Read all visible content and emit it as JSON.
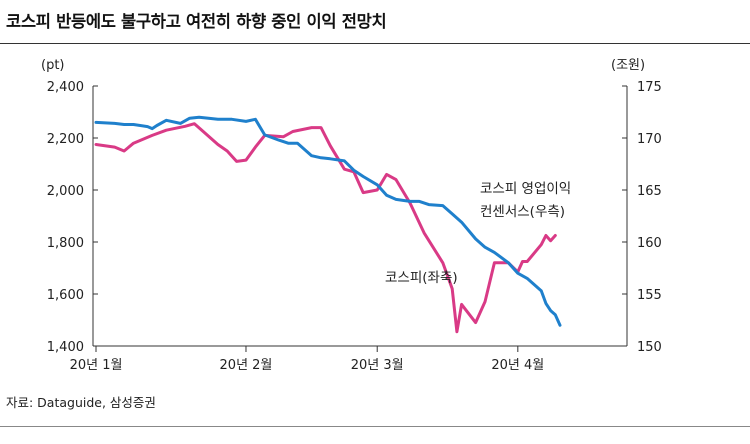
{
  "title": "코스피 반등에도 불구하고 여전히 하향 중인 이익 전망치",
  "source": "자료: Dataguide, 삼성증권",
  "colors": {
    "kospi": "#d93a86",
    "consensus": "#1f80cc",
    "axis": "#333333"
  },
  "chart_data": {
    "type": "line",
    "left_axis": {
      "unit_label": "(pt)",
      "ylim": [
        1400,
        2400
      ],
      "ticks": [
        "2,400",
        "2,200",
        "2,000",
        "1,800",
        "1,600",
        "1,400"
      ],
      "tick_values": [
        2400,
        2200,
        2000,
        1800,
        1600,
        1400
      ]
    },
    "right_axis": {
      "unit_label": "(조원)",
      "ylim": [
        150,
        175
      ],
      "ticks": [
        "175",
        "170",
        "165",
        "160",
        "155",
        "150"
      ],
      "tick_values": [
        175,
        170,
        165,
        160,
        155,
        150
      ]
    },
    "x_ticks": [
      {
        "label": "20년 1월",
        "date": "2020-01-02"
      },
      {
        "label": "20년 2월",
        "date": "2020-02-03"
      },
      {
        "label": "20년 3월",
        "date": "2020-03-02"
      },
      {
        "label": "20년 4월",
        "date": "2020-04-01"
      }
    ],
    "x_range": [
      "2020-01-02",
      "2020-04-10"
    ],
    "grid": false,
    "series": [
      {
        "name": "코스피(좌축)",
        "axis": "left",
        "annotation": "코스피(좌축)",
        "points": [
          [
            "2020-01-02",
            2175
          ],
          [
            "2020-01-06",
            2165
          ],
          [
            "2020-01-08",
            2150
          ],
          [
            "2020-01-10",
            2180
          ],
          [
            "2020-01-14",
            2210
          ],
          [
            "2020-01-17",
            2230
          ],
          [
            "2020-01-21",
            2245
          ],
          [
            "2020-01-23",
            2255
          ],
          [
            "2020-01-28",
            2175
          ],
          [
            "2020-01-30",
            2150
          ],
          [
            "2020-02-01",
            2110
          ],
          [
            "2020-02-03",
            2115
          ],
          [
            "2020-02-05",
            2165
          ],
          [
            "2020-02-07",
            2210
          ],
          [
            "2020-02-11",
            2205
          ],
          [
            "2020-02-13",
            2225
          ],
          [
            "2020-02-17",
            2240
          ],
          [
            "2020-02-19",
            2240
          ],
          [
            "2020-02-21",
            2170
          ],
          [
            "2020-02-24",
            2080
          ],
          [
            "2020-02-26",
            2070
          ],
          [
            "2020-02-28",
            1990
          ],
          [
            "2020-03-02",
            2000
          ],
          [
            "2020-03-04",
            2060
          ],
          [
            "2020-03-06",
            2040
          ],
          [
            "2020-03-09",
            1950
          ],
          [
            "2020-03-12",
            1835
          ],
          [
            "2020-03-16",
            1720
          ],
          [
            "2020-03-18",
            1620
          ],
          [
            "2020-03-19",
            1455
          ],
          [
            "2020-03-20",
            1560
          ],
          [
            "2020-03-23",
            1490
          ],
          [
            "2020-03-25",
            1570
          ],
          [
            "2020-03-27",
            1720
          ],
          [
            "2020-03-30",
            1720
          ],
          [
            "2020-04-01",
            1685
          ],
          [
            "2020-04-02",
            1725
          ],
          [
            "2020-04-03",
            1725
          ],
          [
            "2020-04-06",
            1790
          ],
          [
            "2020-04-07",
            1825
          ],
          [
            "2020-04-08",
            1805
          ],
          [
            "2020-04-09",
            1825
          ]
        ]
      },
      {
        "name": "코스피 영업이익 컨센서스(우측)",
        "axis": "right",
        "annotation": [
          "코스피 영업이익",
          "컨센서스(우측)"
        ],
        "points": [
          [
            "2020-01-02",
            171.5
          ],
          [
            "2020-01-06",
            171.4
          ],
          [
            "2020-01-08",
            171.3
          ],
          [
            "2020-01-10",
            171.3
          ],
          [
            "2020-01-13",
            171.1
          ],
          [
            "2020-01-14",
            170.9
          ],
          [
            "2020-01-15",
            171.2
          ],
          [
            "2020-01-17",
            171.7
          ],
          [
            "2020-01-20",
            171.4
          ],
          [
            "2020-01-22",
            171.9
          ],
          [
            "2020-01-24",
            172.0
          ],
          [
            "2020-01-28",
            171.8
          ],
          [
            "2020-01-31",
            171.8
          ],
          [
            "2020-02-03",
            171.6
          ],
          [
            "2020-02-05",
            171.8
          ],
          [
            "2020-02-07",
            170.3
          ],
          [
            "2020-02-10",
            169.8
          ],
          [
            "2020-02-12",
            169.5
          ],
          [
            "2020-02-14",
            169.5
          ],
          [
            "2020-02-17",
            168.3
          ],
          [
            "2020-02-19",
            168.1
          ],
          [
            "2020-02-21",
            168.0
          ],
          [
            "2020-02-24",
            167.8
          ],
          [
            "2020-02-26",
            166.9
          ],
          [
            "2020-02-28",
            166.3
          ],
          [
            "2020-03-02",
            165.5
          ],
          [
            "2020-03-04",
            164.5
          ],
          [
            "2020-03-06",
            164.1
          ],
          [
            "2020-03-09",
            163.9
          ],
          [
            "2020-03-11",
            163.9
          ],
          [
            "2020-03-13",
            163.6
          ],
          [
            "2020-03-16",
            163.5
          ],
          [
            "2020-03-18",
            162.7
          ],
          [
            "2020-03-20",
            161.9
          ],
          [
            "2020-03-23",
            160.3
          ],
          [
            "2020-03-25",
            159.5
          ],
          [
            "2020-03-27",
            159.0
          ],
          [
            "2020-03-30",
            158.0
          ],
          [
            "2020-04-01",
            157.0
          ],
          [
            "2020-04-03",
            156.5
          ],
          [
            "2020-04-06",
            155.3
          ],
          [
            "2020-04-07",
            154.1
          ],
          [
            "2020-04-08",
            153.4
          ],
          [
            "2020-04-09",
            153.0
          ],
          [
            "2020-04-10",
            152.0
          ]
        ]
      }
    ]
  }
}
